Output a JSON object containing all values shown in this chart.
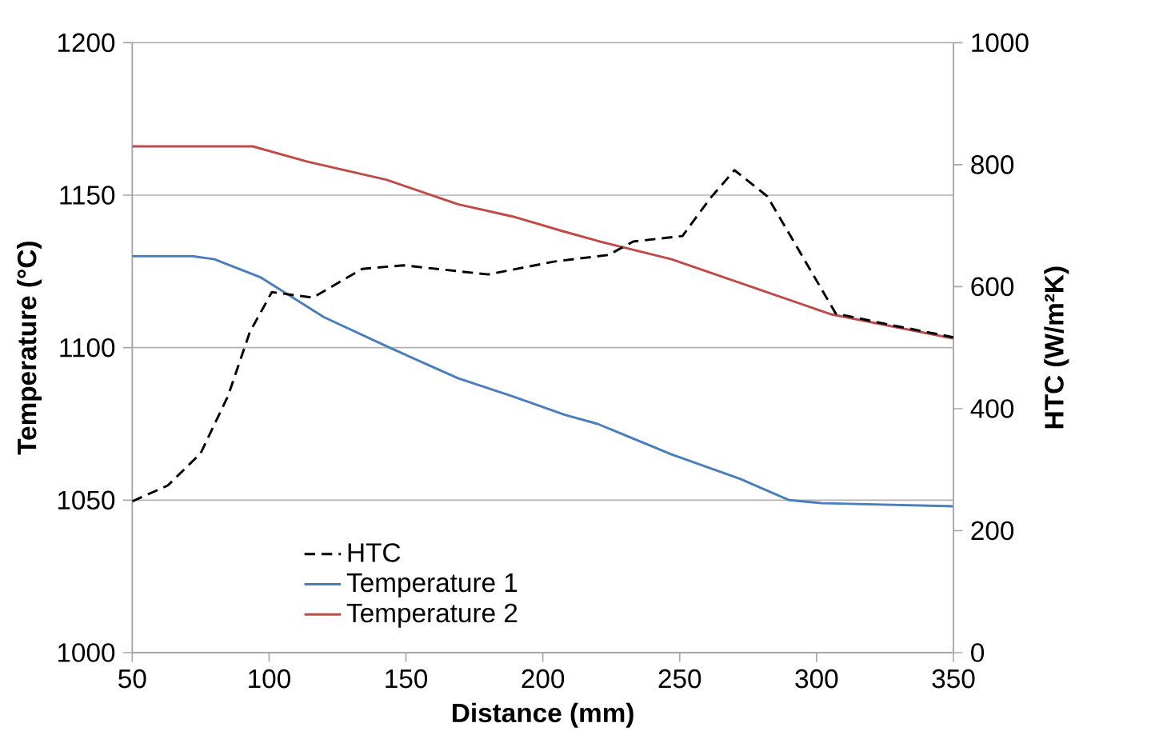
{
  "chart_data": {
    "type": "line",
    "xlabel": "Distance  (mm)",
    "ylabel": "Temperature (°C)",
    "y2label": "HTC (W/m²K)",
    "xlim": [
      50,
      350
    ],
    "xticks": [
      50,
      100,
      150,
      200,
      250,
      300,
      350
    ],
    "ylim": [
      1000,
      1200
    ],
    "yticks": [
      1000,
      1050,
      1100,
      1150,
      1200
    ],
    "y2lim": [
      0,
      1000
    ],
    "y2ticks": [
      0,
      200,
      400,
      600,
      800,
      1000
    ],
    "grid": "y",
    "legend": "bottom left",
    "marker": "none",
    "series": [
      {
        "name": "Temperature 1",
        "color": "#4a7ebb",
        "line_style": "solid",
        "x": [
          50,
          72,
          80,
          97,
          120,
          144,
          169,
          189,
          208,
          220,
          247,
          272,
          290,
          302,
          350
        ],
        "values": [
          1130,
          1130,
          1129,
          1123,
          1110,
          1100,
          1090,
          1084,
          1078,
          1075,
          1065,
          1057,
          1050,
          1049,
          1048
        ]
      },
      {
        "name": "Temperature 2",
        "color": "#be4b48",
        "line_style": "solid",
        "x": [
          50,
          94,
          114,
          143,
          169,
          189,
          208,
          220,
          247,
          276,
          305,
          350
        ],
        "values": [
          1166,
          1166,
          1161,
          1155,
          1147,
          1143,
          1138,
          1135,
          1129,
          1120,
          1111,
          1103
        ]
      },
      {
        "name": "HTC",
        "color": "#000000",
        "line_style": "dashed",
        "axis": "y2",
        "x": [
          50,
          63,
          75,
          85,
          93,
          101,
          116,
          134,
          149,
          180,
          204,
          224,
          233,
          251,
          261,
          270,
          282,
          294,
          307,
          325,
          350
        ],
        "values": [
          248,
          274,
          327,
          421,
          526,
          591,
          582,
          629,
          635,
          620,
          641,
          652,
          674,
          683,
          744,
          791,
          748,
          656,
          556,
          539,
          517
        ]
      }
    ]
  }
}
